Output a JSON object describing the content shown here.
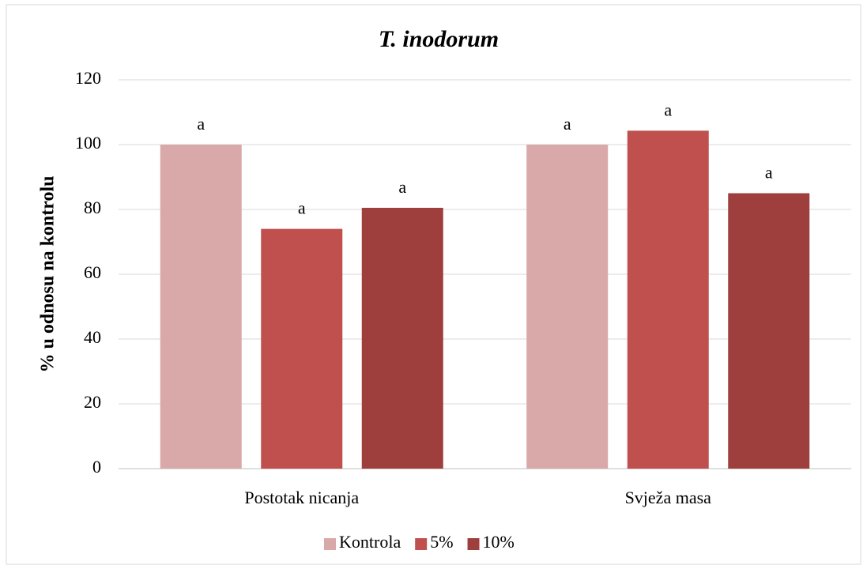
{
  "chart_data": {
    "type": "bar",
    "title": "T. inodorum",
    "y_label": "% u odnosu na kontrolu",
    "categories": [
      "Postotak nicanja",
      "Svježa masa"
    ],
    "series": [
      {
        "name": "Kontrola",
        "color": "#d9a9a9",
        "values": [
          100,
          100
        ],
        "labels": [
          "a",
          "a"
        ]
      },
      {
        "name": "5%",
        "color": "#c0504d",
        "values": [
          74,
          104.3
        ],
        "labels": [
          "a",
          "a"
        ]
      },
      {
        "name": "10%",
        "color": "#9e3f3d",
        "values": [
          80.5,
          85
        ],
        "labels": [
          "a",
          "a"
        ]
      }
    ],
    "ylim": [
      0,
      120
    ],
    "yticks": [
      0,
      20,
      40,
      60,
      80,
      100,
      120
    ],
    "grid": true,
    "legend": "bottom"
  }
}
